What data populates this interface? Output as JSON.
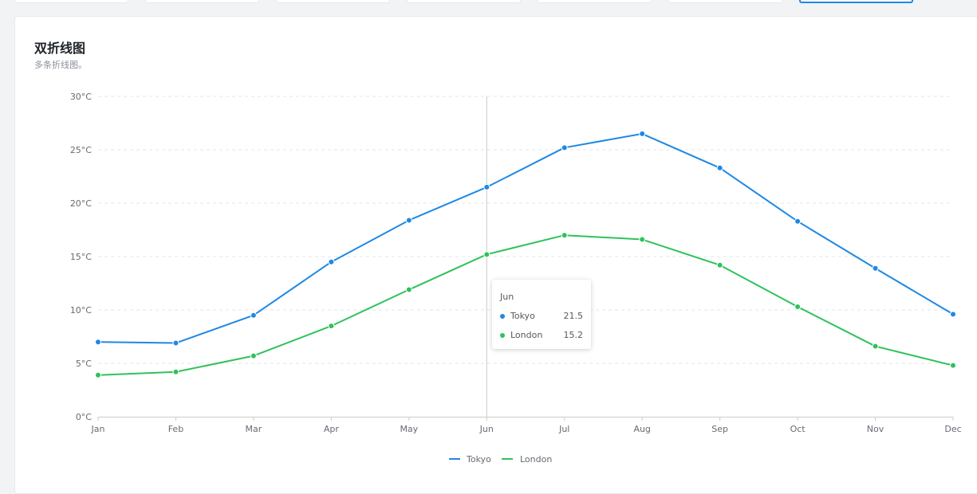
{
  "card": {
    "title": "双折线图",
    "subtitle": "多条折线图。"
  },
  "colors": {
    "tokyo": "#1e88e5",
    "london": "#2fc25b",
    "grid": "#e6e6e6",
    "crosshair": "#c9c9c9",
    "axis": "#cccccc"
  },
  "chart_data": {
    "type": "line",
    "categories": [
      "Jan",
      "Feb",
      "Mar",
      "Apr",
      "May",
      "Jun",
      "Jul",
      "Aug",
      "Sep",
      "Oct",
      "Nov",
      "Dec"
    ],
    "series": [
      {
        "name": "Tokyo",
        "values": [
          7.0,
          6.9,
          9.5,
          14.5,
          18.4,
          21.5,
          25.2,
          26.5,
          23.3,
          18.3,
          13.9,
          9.6
        ]
      },
      {
        "name": "London",
        "values": [
          3.9,
          4.2,
          5.7,
          8.5,
          11.9,
          15.2,
          17.0,
          16.6,
          14.2,
          10.3,
          6.6,
          4.8
        ]
      }
    ],
    "ylim": [
      0,
      30
    ],
    "yticks": [
      "0°C",
      "5°C",
      "10°C",
      "15°C",
      "20°C",
      "25°C",
      "30°C"
    ],
    "grid": true,
    "legend_position": "bottom-center"
  },
  "tooltip": {
    "title": "Jun",
    "rows": [
      {
        "name": "Tokyo",
        "value": "21.5"
      },
      {
        "name": "London",
        "value": "15.2"
      }
    ]
  }
}
